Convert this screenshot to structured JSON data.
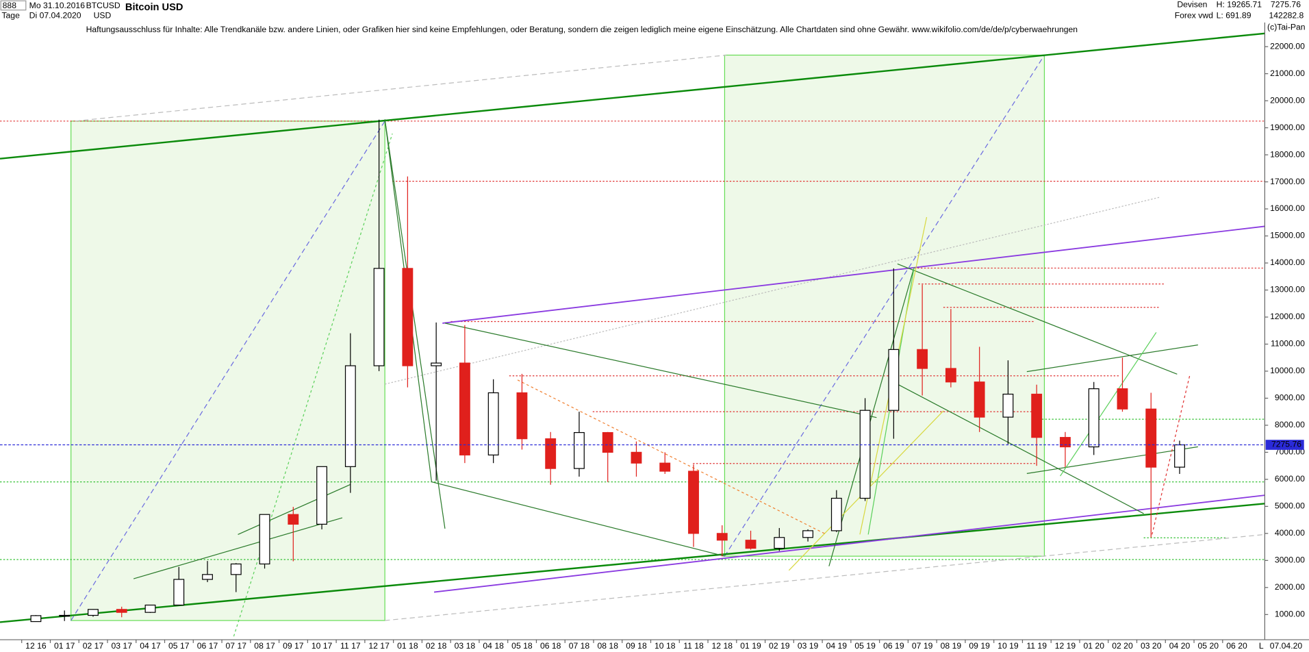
{
  "header": {
    "symbol_box": "888",
    "from_date": "Mo 31.10.2016",
    "period": "Tage",
    "to_date": "Di 07.04.2020",
    "ticker": "BTCUSD",
    "currency": "USD",
    "market": "Devisen",
    "source": "Forex vwd",
    "high": "H: 19265.71",
    "low": "L: 691.89",
    "last": "7275.76",
    "volume": "142282.8",
    "disclaimer": "Haftungsausschluss für Inhalte: Alle Trendkanäle bzw. andere Linien, oder Grafiken hier sind keine Empfehlungen, oder Beratung, sondern die zeigen lediglich meine eigene Einschätzung. Alle Chartdaten sind ohne Gewähr.  www.wikifolio.com/de/de/p/cyberwaehrungen",
    "copyright": "(c)Tai-Pan",
    "footer_flag": "L",
    "footer_date": "07.04.20"
  },
  "chart_data": {
    "type": "candlestick",
    "title": "Bitcoin USD",
    "categories": [
      "12 16",
      "01 17",
      "02 17",
      "03 17",
      "04 17",
      "05 17",
      "06 17",
      "07 17",
      "08 17",
      "09 17",
      "10 17",
      "11 17",
      "12 17",
      "01 18",
      "02 18",
      "03 18",
      "04 18",
      "05 18",
      "06 18",
      "07 18",
      "08 18",
      "09 18",
      "10 18",
      "11 18",
      "12 18",
      "01 19",
      "02 19",
      "03 19",
      "04 19",
      "05 19",
      "06 19",
      "07 19",
      "08 19",
      "09 19",
      "10 19",
      "11 19",
      "12 19",
      "01 20",
      "02 20",
      "03 20",
      "04 20",
      "05 20",
      "06 20"
    ],
    "open": [
      740,
      960,
      970,
      1190,
      1080,
      1350,
      2300,
      2480,
      2870,
      4700,
      4340,
      6470,
      10200,
      13800,
      10200,
      10300,
      6900,
      9200,
      7500,
      6400,
      7730,
      7000,
      6600,
      6300,
      4000,
      3750,
      3450,
      3850,
      4100,
      5300,
      8550,
      10800,
      10100,
      9600,
      8300,
      9150,
      7550,
      7200,
      9350,
      8600,
      6450,
      null,
      null
    ],
    "high": [
      980,
      1150,
      1200,
      1290,
      1350,
      2760,
      2980,
      2900,
      4700,
      4980,
      6470,
      11400,
      19300,
      17200,
      11800,
      11700,
      9700,
      9900,
      7750,
      8500,
      7750,
      7400,
      7000,
      6550,
      4300,
      4100,
      4200,
      4150,
      5600,
      9000,
      13800,
      13200,
      12300,
      10900,
      10400,
      9500,
      7750,
      9600,
      10500,
      9200,
      7430,
      null,
      null
    ],
    "low": [
      740,
      760,
      920,
      900,
      1060,
      1350,
      2200,
      1830,
      2700,
      2970,
      4150,
      5500,
      10000,
      9400,
      5950,
      6600,
      6600,
      7100,
      5800,
      6100,
      5900,
      6100,
      6200,
      3500,
      3150,
      3400,
      3350,
      3700,
      4050,
      5200,
      7500,
      9100,
      9400,
      7750,
      7300,
      6500,
      6450,
      6900,
      8500,
      3850,
      6200,
      null,
      null
    ],
    "close": [
      960,
      970,
      1190,
      1080,
      1350,
      2300,
      2480,
      2870,
      4700,
      4340,
      6470,
      10200,
      13800,
      10200,
      10300,
      6900,
      9200,
      7500,
      6400,
      7730,
      7000,
      6600,
      6300,
      4000,
      3750,
      3450,
      3850,
      4100,
      5300,
      8550,
      10800,
      10100,
      9600,
      8300,
      9150,
      7550,
      7200,
      9350,
      8600,
      6450,
      7275.76,
      null,
      null
    ],
    "up_color": "#000000",
    "down_color": "#e0201c",
    "last_price": 7275.76,
    "last_price_color": "#2a2ad8",
    "ylim": [
      100,
      23200
    ],
    "yticks": [
      {
        "value": 1000,
        "label": "1000.00"
      },
      {
        "value": 2000,
        "label": "2000.00"
      },
      {
        "value": 3000,
        "label": "3000.00"
      },
      {
        "value": 4000,
        "label": "4000.00"
      },
      {
        "value": 5000,
        "label": "5000.00"
      },
      {
        "value": 6000,
        "label": "6000.00"
      },
      {
        "value": 7000,
        "label": "7000.00"
      },
      {
        "value": 8000,
        "label": "8000.00"
      },
      {
        "value": 9000,
        "label": "9000.00"
      },
      {
        "value": 10000,
        "label": "10000.00"
      },
      {
        "value": 11000,
        "label": "11000.00"
      },
      {
        "value": 12000,
        "label": "12000.00"
      },
      {
        "value": 13000,
        "label": "13000.00"
      },
      {
        "value": 14000,
        "label": "14000.00"
      },
      {
        "value": 15000,
        "label": "15000.00"
      },
      {
        "value": 16000,
        "label": "16000.00"
      },
      {
        "value": 17000,
        "label": "17000.00"
      },
      {
        "value": 18000,
        "label": "18000.00"
      },
      {
        "value": 19000,
        "label": "19000.00"
      },
      {
        "value": 20000,
        "label": "20000.00"
      },
      {
        "value": 21000,
        "label": "21000.00"
      },
      {
        "value": 22000,
        "label": "22000.00"
      }
    ],
    "grid": false
  }
}
